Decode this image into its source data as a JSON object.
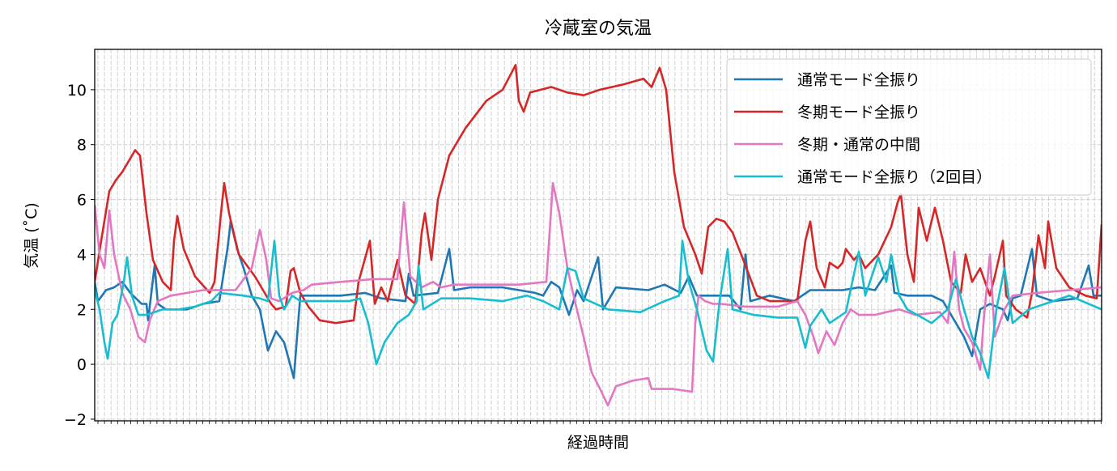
{
  "chart_data": {
    "type": "line",
    "title": "冷蔵室の気温",
    "xlabel": "経過時間",
    "ylabel": "気温 (˚C)",
    "xlim": [
      0,
      622
    ],
    "ylim": [
      -2.06,
      11.47
    ],
    "yticks": [
      -2,
      0,
      2,
      4,
      6,
      8,
      10
    ],
    "ytick_labels": [
      "−2",
      "0",
      "2",
      "4",
      "6",
      "8",
      "10"
    ],
    "xticks_labeled": false,
    "grid": true,
    "legend_position": "upper-right",
    "series": [
      {
        "name": "通常モード全振り",
        "color": "#1f77b4",
        "x": [
          0,
          2,
          7,
          12,
          17,
          22,
          29,
          32,
          33,
          37,
          39,
          44,
          57,
          67,
          77,
          82,
          84,
          88,
          92,
          97,
          102,
          107,
          112,
          117,
          123,
          127,
          132,
          152,
          167,
          177,
          192,
          194,
          197,
          212,
          219,
          222,
          232,
          252,
          272,
          277,
          282,
          287,
          293,
          298,
          302,
          311,
          314,
          322,
          342,
          352,
          362,
          367,
          372,
          392,
          399,
          402,
          405,
          417,
          432,
          442,
          462,
          472,
          482,
          492,
          494,
          502,
          517,
          524,
          532,
          537,
          542,
          547,
          553,
          561,
          564,
          567,
          572,
          579,
          582,
          592,
          607,
          614,
          617,
          622
        ],
        "y": [
          3.0,
          2.3,
          2.7,
          2.8,
          3.0,
          2.6,
          2.2,
          2.2,
          1.6,
          3.6,
          2.2,
          2.0,
          2.0,
          2.2,
          2.3,
          4.2,
          5.2,
          4.2,
          3.5,
          2.5,
          2.0,
          0.5,
          1.2,
          0.8,
          -0.5,
          2.5,
          2.5,
          2.5,
          2.6,
          2.4,
          2.3,
          3.3,
          2.5,
          2.6,
          4.2,
          2.7,
          2.8,
          2.8,
          2.6,
          2.5,
          3.0,
          2.8,
          1.8,
          2.7,
          2.3,
          3.9,
          2.0,
          2.8,
          2.7,
          2.9,
          2.6,
          3.2,
          2.5,
          2.5,
          2.0,
          4.0,
          2.3,
          2.5,
          2.3,
          2.7,
          2.7,
          2.8,
          2.7,
          3.6,
          2.6,
          2.5,
          2.5,
          2.3,
          1.5,
          1.0,
          0.3,
          2.0,
          2.2,
          2.0,
          1.6,
          2.4,
          2.5,
          4.2,
          2.5,
          2.3,
          2.4,
          3.6,
          2.5,
          2.5
        ]
      },
      {
        "name": "冬期モード全振り",
        "color": "#d62728",
        "x": [
          0,
          4,
          9,
          13,
          17,
          22,
          25,
          28,
          32,
          36,
          42,
          47,
          49,
          51,
          55,
          62,
          71,
          74,
          78,
          80,
          83,
          89,
          99,
          109,
          112,
          118,
          121,
          123,
          127,
          132,
          139,
          149,
          160,
          163,
          170,
          173,
          177,
          181,
          187,
          192,
          198,
          202,
          204,
          208,
          212,
          219,
          229,
          242,
          252,
          260,
          262,
          265,
          269,
          282,
          292,
          302,
          312,
          327,
          339,
          344,
          349,
          353,
          358,
          364,
          371,
          375,
          379,
          384,
          389,
          394,
          402,
          409,
          417,
          434,
          439,
          442,
          446,
          451,
          454,
          459,
          462,
          464,
          469,
          472,
          476,
          484,
          492,
          496,
          498,
          502,
          506,
          509,
          514,
          519,
          524,
          529,
          535,
          538,
          542,
          547,
          553,
          556,
          561,
          563,
          569,
          576,
          579,
          583,
          587,
          589,
          594,
          602,
          612,
          619,
          622
        ],
        "y": [
          3.0,
          4.5,
          6.3,
          6.7,
          7.0,
          7.5,
          7.8,
          7.6,
          5.5,
          3.8,
          3.0,
          2.7,
          4.5,
          5.4,
          4.2,
          3.2,
          2.6,
          3.0,
          5.5,
          6.6,
          5.5,
          4.0,
          3.2,
          2.2,
          2.0,
          2.1,
          3.4,
          3.5,
          2.6,
          2.1,
          1.6,
          1.5,
          1.6,
          3.0,
          4.5,
          2.2,
          2.8,
          2.3,
          3.8,
          2.5,
          2.2,
          4.8,
          5.5,
          3.8,
          6.0,
          7.6,
          8.6,
          9.6,
          10.0,
          10.9,
          9.6,
          9.2,
          9.9,
          10.1,
          9.9,
          9.8,
          10.0,
          10.2,
          10.4,
          10.1,
          10.8,
          10.0,
          7.0,
          5.0,
          4.0,
          3.3,
          5.0,
          5.3,
          5.2,
          4.8,
          3.6,
          2.5,
          2.3,
          2.3,
          4.5,
          5.2,
          3.5,
          2.8,
          3.7,
          3.5,
          3.7,
          4.2,
          3.8,
          4.0,
          3.5,
          4.0,
          5.0,
          5.9,
          6.2,
          4.0,
          3.0,
          5.7,
          4.5,
          5.7,
          4.5,
          3.0,
          2.6,
          4.0,
          3.0,
          3.5,
          2.5,
          3.2,
          4.5,
          2.5,
          2.0,
          1.7,
          2.6,
          4.7,
          3.5,
          5.2,
          3.5,
          2.8,
          2.5,
          2.4,
          5.1
        ]
      },
      {
        "name": "冬期・通常の中間",
        "color": "#e377c2",
        "x": [
          0,
          3,
          6,
          9,
          12,
          17,
          22,
          27,
          31,
          34,
          39,
          47,
          67,
          87,
          97,
          102,
          106,
          109,
          114,
          122,
          129,
          134,
          152,
          172,
          187,
          191,
          195,
          202,
          209,
          214,
          222,
          242,
          262,
          279,
          283,
          287,
          292,
          297,
          302,
          307,
          313,
          317,
          322,
          332,
          342,
          344,
          357,
          369,
          371,
          373,
          377,
          382,
          387,
          402,
          422,
          434,
          439,
          444,
          447,
          452,
          457,
          462,
          467,
          472,
          482,
          489,
          497,
          507,
          522,
          527,
          531,
          534,
          537,
          542,
          547,
          549,
          553,
          556,
          562,
          567,
          582,
          602,
          622
        ],
        "y": [
          5.8,
          4.0,
          3.5,
          5.6,
          4.0,
          2.6,
          2.0,
          1.0,
          0.8,
          1.6,
          2.3,
          2.5,
          2.7,
          2.7,
          3.5,
          4.9,
          3.8,
          2.4,
          2.3,
          2.6,
          2.7,
          2.9,
          3.0,
          3.1,
          3.1,
          5.9,
          3.2,
          2.8,
          3.0,
          2.8,
          2.9,
          2.9,
          2.9,
          3.0,
          6.6,
          5.5,
          3.5,
          2.2,
          1.0,
          -0.3,
          -1.0,
          -1.5,
          -0.8,
          -0.6,
          -0.5,
          -0.9,
          -0.9,
          -1.0,
          1.5,
          2.5,
          2.3,
          2.2,
          2.2,
          2.1,
          2.1,
          2.3,
          1.8,
          1.0,
          0.4,
          1.2,
          0.7,
          1.5,
          2.0,
          1.8,
          1.8,
          1.9,
          2.0,
          1.8,
          1.9,
          1.5,
          4.1,
          2.0,
          1.3,
          0.8,
          -0.2,
          1.5,
          4.0,
          1.0,
          2.0,
          2.5,
          2.6,
          2.7,
          2.8
        ]
      },
      {
        "name": "通常モード全振り（2回目）",
        "color": "#17becf",
        "x": [
          0,
          3,
          6,
          8,
          11,
          14,
          18,
          20,
          23,
          27,
          32,
          42,
          52,
          62,
          72,
          77,
          92,
          102,
          107,
          111,
          114,
          117,
          122,
          127,
          142,
          157,
          164,
          169,
          174,
          179,
          187,
          194,
          199,
          200,
          203,
          214,
          232,
          252,
          267,
          277,
          287,
          292,
          297,
          302,
          317,
          337,
          352,
          361,
          363,
          367,
          372,
          378,
          382,
          386,
          391,
          394,
          407,
          422,
          434,
          439,
          442,
          449,
          454,
          464,
          472,
          476,
          484,
          489,
          492,
          497,
          502,
          517,
          527,
          532,
          537,
          542,
          547,
          552,
          557,
          562,
          567,
          577,
          592,
          602,
          622
        ],
        "y": [
          2.7,
          2.0,
          0.8,
          0.2,
          1.5,
          1.8,
          3.0,
          3.9,
          2.5,
          1.8,
          1.8,
          2.0,
          2.0,
          2.1,
          2.3,
          2.6,
          2.5,
          2.4,
          2.3,
          4.5,
          2.5,
          2.0,
          2.5,
          2.3,
          2.3,
          2.3,
          2.4,
          1.5,
          0.0,
          0.8,
          1.5,
          1.8,
          2.3,
          3.6,
          2.0,
          2.4,
          2.4,
          2.3,
          2.5,
          2.3,
          2.0,
          3.5,
          3.4,
          2.4,
          2.0,
          1.9,
          2.3,
          2.5,
          4.5,
          3.0,
          2.0,
          0.5,
          0.1,
          2.3,
          4.2,
          2.0,
          1.8,
          1.7,
          1.7,
          0.6,
          1.4,
          2.0,
          1.5,
          1.9,
          4.1,
          2.5,
          3.9,
          3.0,
          4.0,
          2.5,
          2.0,
          1.5,
          2.0,
          3.1,
          2.0,
          1.0,
          0.4,
          -0.5,
          2.0,
          3.5,
          1.5,
          2.0,
          2.3,
          2.5,
          2.0
        ]
      }
    ]
  }
}
